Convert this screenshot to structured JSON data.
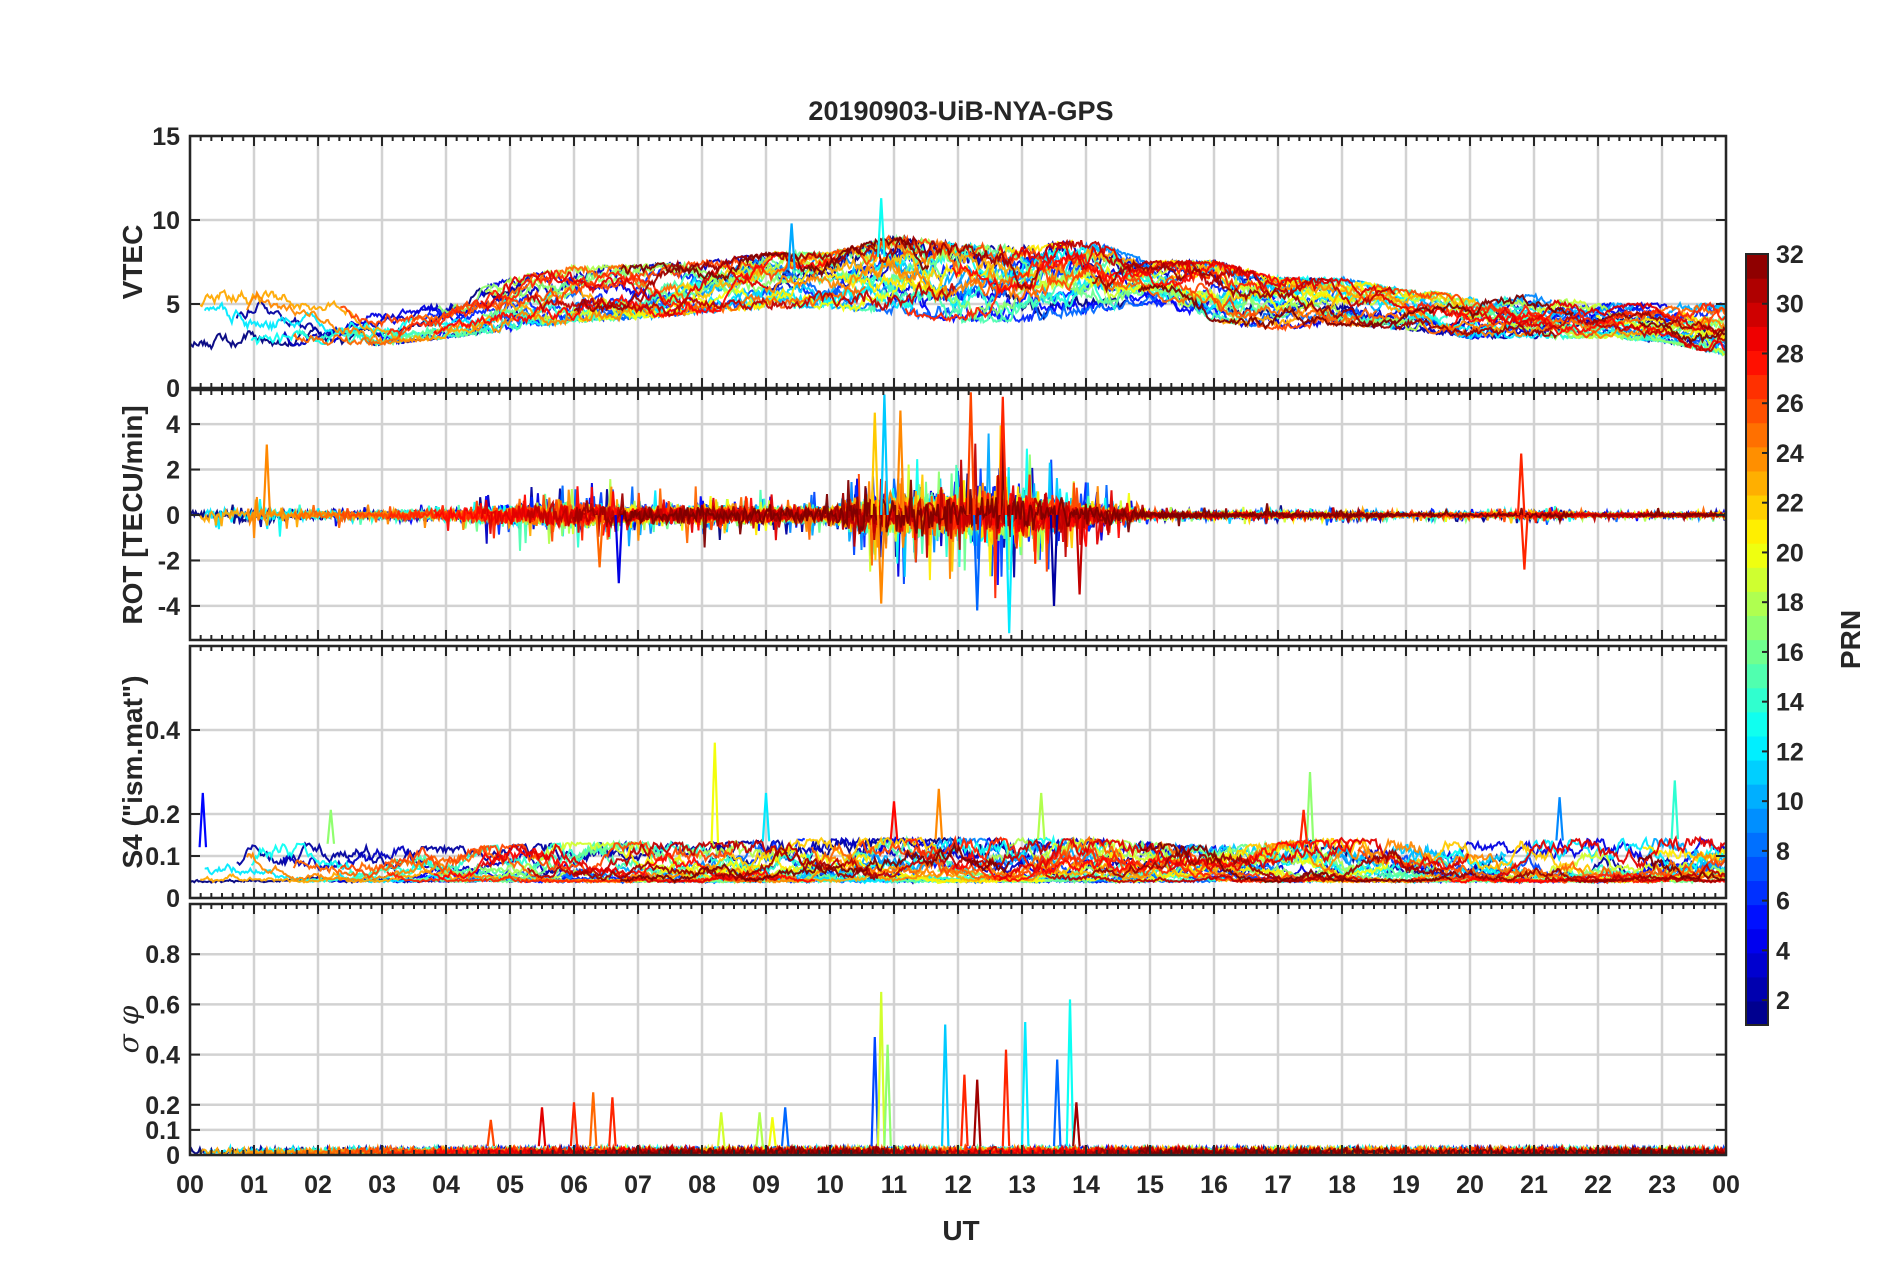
{
  "chart_data": {
    "title": "20190903-UiB-NYA-GPS",
    "type": "line",
    "xlabel": "UT",
    "xlim": [
      0,
      24
    ],
    "x_ticks": [
      0,
      1,
      2,
      3,
      4,
      5,
      6,
      7,
      8,
      9,
      10,
      11,
      12,
      13,
      14,
      15,
      16,
      17,
      18,
      19,
      20,
      21,
      22,
      23,
      24
    ],
    "x_tick_labels": [
      "00",
      "01",
      "02",
      "03",
      "04",
      "05",
      "06",
      "07",
      "08",
      "09",
      "10",
      "11",
      "12",
      "13",
      "14",
      "15",
      "16",
      "17",
      "18",
      "19",
      "20",
      "21",
      "22",
      "23",
      "00"
    ],
    "grid": true,
    "series_note": "one line per GPS satellite, colored by PRN",
    "panels": [
      {
        "id": "vtec",
        "ylabel": "VTEC",
        "ylim": [
          0,
          15
        ],
        "yticks": [
          0,
          5,
          10,
          15
        ],
        "ytick_labels": [
          "0",
          "5",
          "10",
          "15"
        ],
        "envelope": {
          "x": [
            0,
            1,
            2,
            3,
            4,
            5,
            6,
            7,
            8,
            9,
            10,
            11,
            12,
            13,
            14,
            15,
            16,
            17,
            18,
            19,
            20,
            21,
            22,
            23,
            24
          ],
          "low": [
            2.2,
            2.5,
            2.6,
            2.6,
            3.0,
            3.5,
            4.0,
            4.2,
            4.5,
            4.8,
            4.8,
            4.5,
            4.0,
            4.0,
            4.5,
            5.0,
            4.0,
            3.5,
            3.8,
            3.5,
            3.0,
            3.0,
            3.0,
            2.8,
            2.0
          ],
          "high": [
            5.5,
            6.0,
            5.2,
            5.0,
            5.3,
            6.5,
            7.2,
            7.3,
            7.5,
            8.0,
            8.0,
            9.0,
            8.5,
            8.3,
            8.8,
            7.5,
            7.5,
            6.5,
            6.5,
            5.8,
            5.5,
            5.5,
            5.0,
            5.0,
            5.0
          ],
          "noise": 0.5
        },
        "spikes": [
          {
            "x": 9.4,
            "y": 9.8,
            "prn": 10
          },
          {
            "x": 10.8,
            "y": 11.3,
            "prn": 13
          },
          {
            "x": 15.6,
            "y": 7.6,
            "prn": 29
          }
        ]
      },
      {
        "id": "rot",
        "ylabel": "ROT [TECU/min]",
        "ylim": [
          -5.5,
          5.5
        ],
        "yticks": [
          -4,
          -2,
          0,
          2,
          4
        ],
        "ytick_labels": [
          "-4",
          "-2",
          "0",
          "2",
          "4"
        ],
        "envelope": {
          "x": [
            0,
            1,
            2,
            3,
            4,
            5,
            6,
            7,
            8,
            9,
            10,
            10.5,
            11,
            12,
            12.5,
            13,
            14,
            15,
            16,
            17,
            18,
            19,
            20,
            21,
            22,
            23,
            24
          ],
          "amp": [
            0.5,
            0.8,
            0.4,
            0.4,
            0.5,
            1.0,
            1.2,
            0.9,
            0.9,
            0.8,
            0.8,
            2.0,
            2.0,
            2.2,
            2.6,
            2.3,
            1.2,
            0.3,
            0.3,
            0.3,
            0.3,
            0.2,
            0.2,
            0.3,
            0.2,
            0.2,
            0.2
          ],
          "noise": 1.0
        },
        "spikes": [
          {
            "x": 1.2,
            "y": 3.1,
            "prn": 24
          },
          {
            "x": 6.4,
            "y": -2.3,
            "prn": 25
          },
          {
            "x": 6.7,
            "y": -3.0,
            "prn": 4
          },
          {
            "x": 10.7,
            "y": 4.5,
            "prn": 22
          },
          {
            "x": 10.8,
            "y": -3.9,
            "prn": 24
          },
          {
            "x": 10.85,
            "y": 5.3,
            "prn": 11
          },
          {
            "x": 11.1,
            "y": 4.6,
            "prn": 24
          },
          {
            "x": 12.2,
            "y": 5.4,
            "prn": 26
          },
          {
            "x": 12.3,
            "y": -4.2,
            "prn": 8
          },
          {
            "x": 12.7,
            "y": 5.2,
            "prn": 27
          },
          {
            "x": 12.8,
            "y": -5.2,
            "prn": 12
          },
          {
            "x": 13.5,
            "y": -4.0,
            "prn": 2
          },
          {
            "x": 13.9,
            "y": -3.5,
            "prn": 30
          },
          {
            "x": 20.8,
            "y": 2.7,
            "prn": 27
          },
          {
            "x": 20.85,
            "y": -2.4,
            "prn": 27
          }
        ]
      },
      {
        "id": "s4",
        "ylabel": "S4 (\"ism.mat\")",
        "ylim": [
          0,
          0.6
        ],
        "yticks": [
          0,
          0.1,
          0.2,
          0.4
        ],
        "ytick_labels": [
          "0",
          "0.1",
          "0.2",
          "0.4"
        ],
        "envelope": {
          "x": [
            0,
            2,
            4,
            6,
            8,
            10,
            12,
            14,
            16,
            18,
            20,
            22,
            24
          ],
          "low": [
            0.04,
            0.04,
            0.04,
            0.04,
            0.04,
            0.04,
            0.04,
            0.04,
            0.04,
            0.04,
            0.04,
            0.04,
            0.04
          ],
          "high": [
            0.12,
            0.13,
            0.12,
            0.13,
            0.13,
            0.14,
            0.14,
            0.14,
            0.12,
            0.14,
            0.13,
            0.14,
            0.14
          ],
          "noise": 0.6
        },
        "spikes": [
          {
            "x": 0.2,
            "y": 0.25,
            "prn": 5
          },
          {
            "x": 2.2,
            "y": 0.21,
            "prn": 17
          },
          {
            "x": 8.2,
            "y": 0.37,
            "prn": 20
          },
          {
            "x": 9.0,
            "y": 0.25,
            "prn": 12
          },
          {
            "x": 11.0,
            "y": 0.23,
            "prn": 28
          },
          {
            "x": 11.7,
            "y": 0.26,
            "prn": 24
          },
          {
            "x": 13.3,
            "y": 0.25,
            "prn": 18
          },
          {
            "x": 17.5,
            "y": 0.3,
            "prn": 17
          },
          {
            "x": 17.4,
            "y": 0.21,
            "prn": 27
          },
          {
            "x": 21.4,
            "y": 0.24,
            "prn": 9
          },
          {
            "x": 23.2,
            "y": 0.28,
            "prn": 14
          }
        ]
      },
      {
        "id": "sigma_phi",
        "ylabel": "σ φ",
        "ylim": [
          0,
          1
        ],
        "yticks": [
          0,
          0.1,
          0.2,
          0.4,
          0.6,
          0.8
        ],
        "ytick_labels": [
          "0",
          "0.1",
          "0.2",
          "0.4",
          "0.6",
          "0.8"
        ],
        "envelope": {
          "x": [
            0,
            24
          ],
          "low": [
            0.005,
            0.005
          ],
          "high": [
            0.035,
            0.035
          ],
          "noise": 0.5
        },
        "spikes": [
          {
            "x": 4.7,
            "y": 0.14,
            "prn": 26
          },
          {
            "x": 5.5,
            "y": 0.19,
            "prn": 29
          },
          {
            "x": 6.0,
            "y": 0.21,
            "prn": 27
          },
          {
            "x": 6.3,
            "y": 0.25,
            "prn": 25
          },
          {
            "x": 6.6,
            "y": 0.23,
            "prn": 27
          },
          {
            "x": 8.3,
            "y": 0.17,
            "prn": 19
          },
          {
            "x": 8.9,
            "y": 0.17,
            "prn": 18
          },
          {
            "x": 9.1,
            "y": 0.15,
            "prn": 20
          },
          {
            "x": 9.3,
            "y": 0.19,
            "prn": 8
          },
          {
            "x": 10.7,
            "y": 0.47,
            "prn": 7
          },
          {
            "x": 10.8,
            "y": 0.65,
            "prn": 19
          },
          {
            "x": 10.9,
            "y": 0.44,
            "prn": 17
          },
          {
            "x": 11.8,
            "y": 0.52,
            "prn": 11
          },
          {
            "x": 12.1,
            "y": 0.32,
            "prn": 27
          },
          {
            "x": 12.3,
            "y": 0.3,
            "prn": 31
          },
          {
            "x": 12.75,
            "y": 0.42,
            "prn": 27
          },
          {
            "x": 13.05,
            "y": 0.53,
            "prn": 12
          },
          {
            "x": 13.55,
            "y": 0.38,
            "prn": 8
          },
          {
            "x": 13.75,
            "y": 0.62,
            "prn": 13
          },
          {
            "x": 13.85,
            "y": 0.21,
            "prn": 31
          }
        ]
      }
    ],
    "colorbar": {
      "label": "PRN",
      "range": [
        1,
        32
      ],
      "ticks": [
        2,
        4,
        6,
        8,
        10,
        12,
        14,
        16,
        18,
        20,
        22,
        24,
        26,
        28,
        30,
        32
      ],
      "tick_labels": [
        "2",
        "4",
        "6",
        "8",
        "10",
        "12",
        "14",
        "16",
        "18",
        "20",
        "22",
        "24",
        "26",
        "28",
        "30",
        "32"
      ],
      "colormap": "jet",
      "levels": 32
    },
    "prns": [
      1,
      2,
      3,
      4,
      5,
      6,
      7,
      8,
      9,
      10,
      11,
      12,
      13,
      14,
      15,
      16,
      17,
      18,
      19,
      20,
      21,
      22,
      23,
      24,
      25,
      26,
      27,
      28,
      29,
      30,
      31,
      32
    ]
  }
}
